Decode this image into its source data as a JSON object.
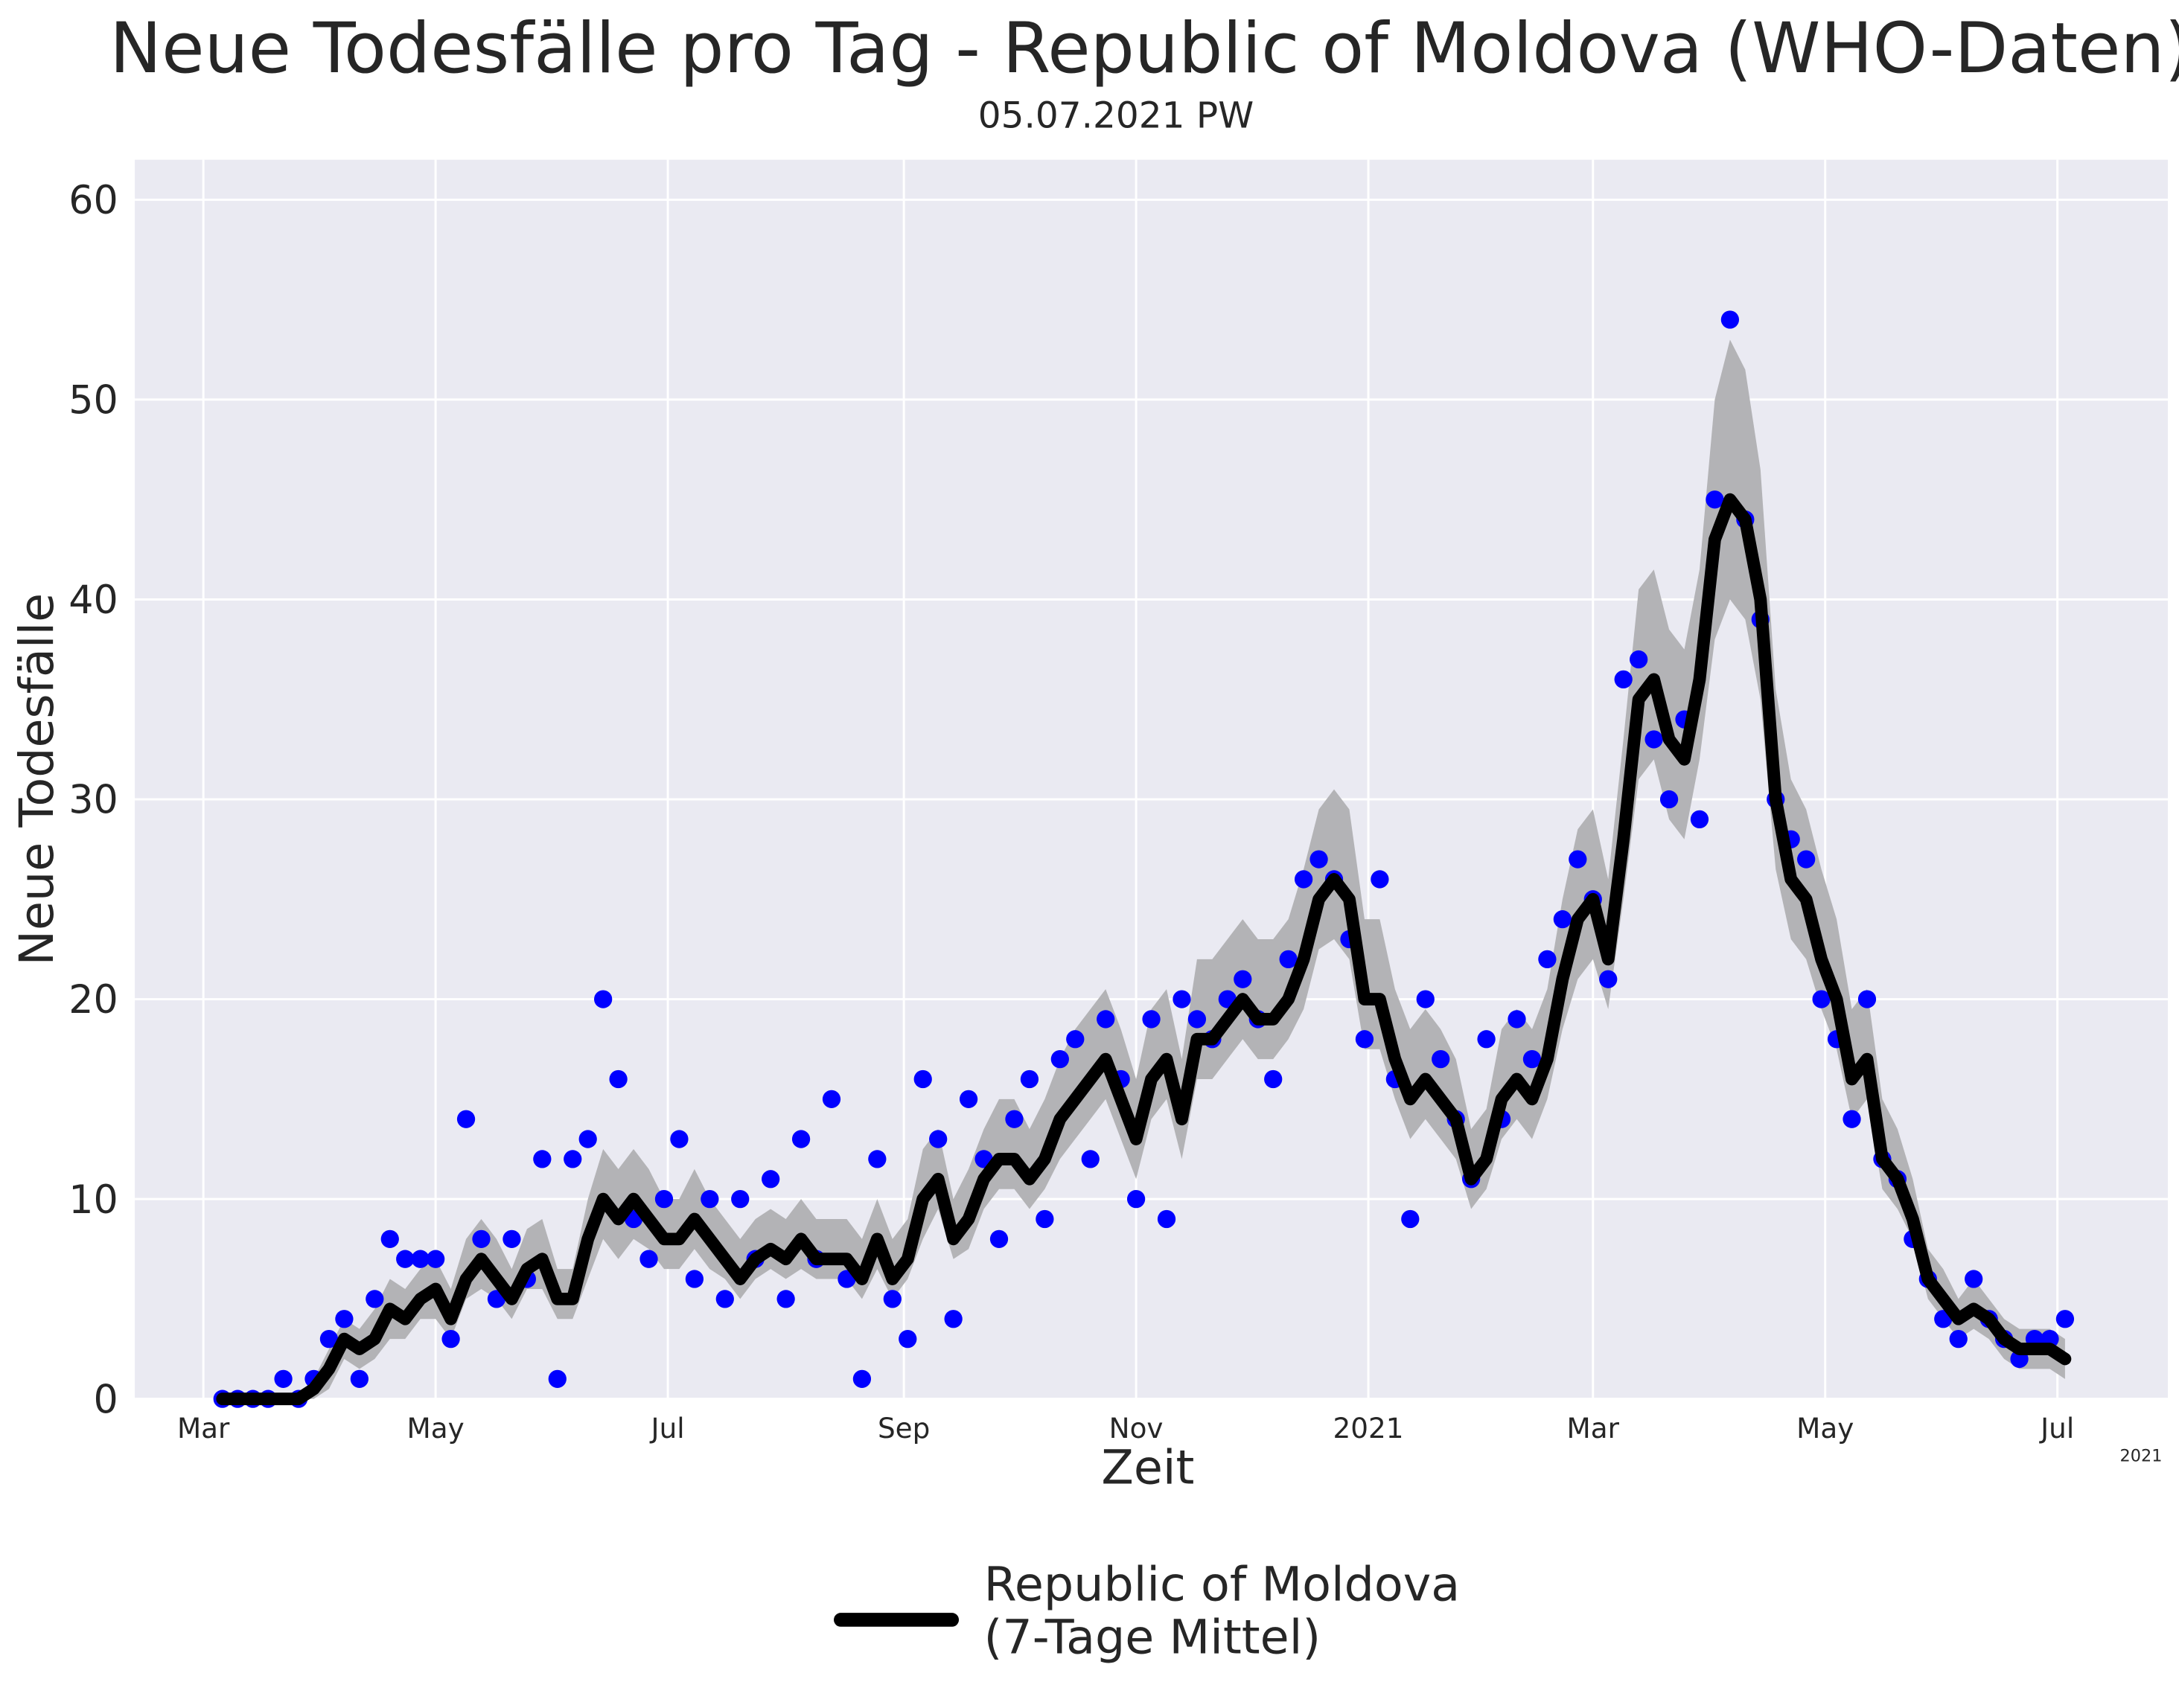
{
  "chart_data": {
    "type": "line",
    "title": "Neue Todesfälle pro Tag - Republic of Moldova (WHO-Daten)",
    "subtitle": "05.07.2021 PW",
    "xlabel": "Zeit",
    "ylabel": "Neue Todesfälle",
    "x_offset_label": "2021",
    "grid": true,
    "xlim": [
      "2020-02-12",
      "2021-07-30"
    ],
    "xticks": [
      {
        "value": "2020-03-01",
        "label": "Mar"
      },
      {
        "value": "2020-05-01",
        "label": "May"
      },
      {
        "value": "2020-07-01",
        "label": "Jul"
      },
      {
        "value": "2020-09-01",
        "label": "Sep"
      },
      {
        "value": "2020-11-01",
        "label": "Nov"
      },
      {
        "value": "2021-01-01",
        "label": "2021"
      },
      {
        "value": "2021-03-01",
        "label": "Mar"
      },
      {
        "value": "2021-05-01",
        "label": "May"
      },
      {
        "value": "2021-07-01",
        "label": "Jul"
      }
    ],
    "ylim": [
      0,
      62
    ],
    "yticks": [
      0,
      10,
      20,
      30,
      40,
      50,
      60
    ],
    "x": [
      "2020-03-06",
      "2020-03-10",
      "2020-03-14",
      "2020-03-18",
      "2020-03-22",
      "2020-03-26",
      "2020-03-30",
      "2020-04-03",
      "2020-04-07",
      "2020-04-11",
      "2020-04-15",
      "2020-04-19",
      "2020-04-23",
      "2020-04-27",
      "2020-05-01",
      "2020-05-05",
      "2020-05-09",
      "2020-05-13",
      "2020-05-17",
      "2020-05-21",
      "2020-05-25",
      "2020-05-29",
      "2020-06-02",
      "2020-06-06",
      "2020-06-10",
      "2020-06-14",
      "2020-06-18",
      "2020-06-22",
      "2020-06-26",
      "2020-06-30",
      "2020-07-04",
      "2020-07-08",
      "2020-07-12",
      "2020-07-16",
      "2020-07-20",
      "2020-07-24",
      "2020-07-28",
      "2020-08-01",
      "2020-08-05",
      "2020-08-09",
      "2020-08-13",
      "2020-08-17",
      "2020-08-21",
      "2020-08-25",
      "2020-08-29",
      "2020-09-02",
      "2020-09-06",
      "2020-09-10",
      "2020-09-14",
      "2020-09-18",
      "2020-09-22",
      "2020-09-26",
      "2020-09-30",
      "2020-10-04",
      "2020-10-08",
      "2020-10-12",
      "2020-10-16",
      "2020-10-20",
      "2020-10-24",
      "2020-10-28",
      "2020-11-01",
      "2020-11-05",
      "2020-11-09",
      "2020-11-13",
      "2020-11-17",
      "2020-11-21",
      "2020-11-25",
      "2020-11-29",
      "2020-12-03",
      "2020-12-07",
      "2020-12-11",
      "2020-12-15",
      "2020-12-19",
      "2020-12-23",
      "2020-12-27",
      "2020-12-31",
      "2021-01-04",
      "2021-01-08",
      "2021-01-12",
      "2021-01-16",
      "2021-01-20",
      "2021-01-24",
      "2021-01-28",
      "2021-02-01",
      "2021-02-05",
      "2021-02-09",
      "2021-02-13",
      "2021-02-17",
      "2021-02-21",
      "2021-02-25",
      "2021-03-01",
      "2021-03-05",
      "2021-03-09",
      "2021-03-13",
      "2021-03-17",
      "2021-03-21",
      "2021-03-25",
      "2021-03-29",
      "2021-04-02",
      "2021-04-06",
      "2021-04-10",
      "2021-04-14",
      "2021-04-18",
      "2021-04-22",
      "2021-04-26",
      "2021-04-30",
      "2021-05-04",
      "2021-05-08",
      "2021-05-12",
      "2021-05-16",
      "2021-05-20",
      "2021-05-24",
      "2021-05-28",
      "2021-06-01",
      "2021-06-05",
      "2021-06-09",
      "2021-06-13",
      "2021-06-17",
      "2021-06-21",
      "2021-06-25",
      "2021-06-29",
      "2021-07-03"
    ],
    "points": {
      "color": "#0000ff",
      "values": [
        0,
        0,
        0,
        0,
        1,
        0,
        1,
        3,
        4,
        1,
        5,
        8,
        7,
        7,
        7,
        3,
        14,
        8,
        5,
        8,
        6,
        12,
        1,
        12,
        13,
        20,
        16,
        9,
        7,
        10,
        13,
        6,
        10,
        5,
        10,
        7,
        11,
        5,
        13,
        7,
        15,
        6,
        1,
        12,
        5,
        3,
        16,
        13,
        4,
        15,
        12,
        8,
        14,
        16,
        9,
        17,
        18,
        12,
        19,
        16,
        10,
        19,
        9,
        20,
        19,
        18,
        20,
        21,
        19,
        16,
        22,
        26,
        27,
        26,
        23,
        18,
        26,
        16,
        9,
        20,
        17,
        14,
        11,
        18,
        14,
        19,
        17,
        22,
        24,
        27,
        25,
        21,
        36,
        37,
        33,
        30,
        34,
        29,
        45,
        54,
        44,
        39,
        30,
        28,
        27,
        20,
        18,
        14,
        20,
        12,
        11,
        8,
        6,
        4,
        3,
        6,
        4,
        3,
        2,
        3,
        3,
        4
      ]
    },
    "band": {
      "color": "#b3b3b6",
      "lower": [
        0,
        0,
        0,
        0,
        0,
        0,
        0,
        0.5,
        2,
        1.5,
        2,
        3,
        3,
        4,
        4,
        3,
        5,
        5.5,
        5,
        4,
        5.5,
        5.5,
        4,
        4,
        6,
        8,
        7,
        8,
        7.5,
        6.5,
        6.5,
        7.5,
        6.5,
        6,
        5,
        6,
        6.5,
        6,
        6.5,
        6,
        6,
        6,
        5,
        6.5,
        5,
        6,
        8,
        9.5,
        7,
        7.5,
        9.5,
        10.5,
        10.5,
        9.5,
        10.5,
        12,
        13,
        14,
        15,
        13,
        11,
        14,
        15,
        12,
        16,
        16,
        17,
        18,
        17,
        17,
        18,
        19.5,
        22.5,
        23,
        22,
        17.5,
        17.5,
        15,
        13,
        14,
        13,
        12,
        9.5,
        10.5,
        13,
        14,
        13,
        15,
        18.5,
        21,
        22,
        19.5,
        25,
        31,
        32,
        29,
        28,
        32,
        38,
        40,
        39,
        35,
        26.5,
        23,
        22,
        19.5,
        17.5,
        14,
        15,
        10.5,
        9.5,
        8,
        5,
        4,
        3,
        3.5,
        3,
        2,
        1.5,
        1.5,
        1.5,
        1
      ],
      "upper": [
        0,
        0,
        0,
        0,
        0,
        0,
        1,
        2.5,
        4,
        3.5,
        4.5,
        6,
        5.5,
        6.5,
        7,
        5.5,
        8,
        9,
        8,
        6.5,
        8.5,
        9,
        6.5,
        6.5,
        10,
        12.5,
        11.5,
        12.5,
        11.5,
        10,
        10,
        11.5,
        10,
        9,
        8,
        9,
        9.5,
        9,
        10,
        9,
        9,
        9,
        8,
        10,
        8,
        9,
        12.5,
        13.5,
        10,
        11.5,
        13.5,
        15,
        15,
        13.5,
        15,
        17,
        18.5,
        19.5,
        20.5,
        18.5,
        16,
        19.5,
        20.5,
        17,
        22,
        22,
        23,
        24,
        23,
        23,
        24,
        26.5,
        29.5,
        30.5,
        29.5,
        24,
        24,
        20.5,
        18.5,
        19.5,
        18.5,
        17,
        13.5,
        14.5,
        18.5,
        19.5,
        18.5,
        20.5,
        25,
        28.5,
        29.5,
        26,
        33,
        40.5,
        41.5,
        38.5,
        37.5,
        41.5,
        50,
        53,
        51.5,
        46.5,
        35.5,
        31,
        29.5,
        26.5,
        24,
        19.5,
        20.5,
        15,
        13.5,
        11,
        7.5,
        6.5,
        5,
        6,
        5,
        4,
        3.5,
        3.5,
        3.5,
        3
      ]
    },
    "series": [
      {
        "name": "Republic of Moldova\n(7-Tage Mittel)",
        "color": "#000000",
        "values": [
          0,
          0,
          0,
          0,
          0,
          0,
          0.5,
          1.5,
          3,
          2.5,
          3,
          4.5,
          4,
          5,
          5.5,
          4,
          6,
          7,
          6,
          5,
          6.5,
          7,
          5,
          5,
          8,
          10,
          9,
          10,
          9,
          8,
          8,
          9,
          8,
          7,
          6,
          7,
          7.5,
          7,
          8,
          7,
          7,
          7,
          6,
          8,
          6,
          7,
          10,
          11,
          8,
          9,
          11,
          12,
          12,
          11,
          12,
          14,
          15,
          16,
          17,
          15,
          13,
          16,
          17,
          14,
          18,
          18,
          19,
          20,
          19,
          19,
          20,
          22,
          25,
          26,
          25,
          20,
          20,
          17,
          15,
          16,
          15,
          14,
          11,
          12,
          15,
          16,
          15,
          17,
          21,
          24,
          25,
          22,
          28,
          35,
          36,
          33,
          32,
          36,
          43,
          45,
          44,
          40,
          30,
          26,
          25,
          22,
          20,
          16,
          17,
          12,
          11,
          9,
          6,
          5,
          4,
          4.5,
          4,
          3,
          2.5,
          2.5,
          2.5,
          2
        ]
      }
    ]
  }
}
